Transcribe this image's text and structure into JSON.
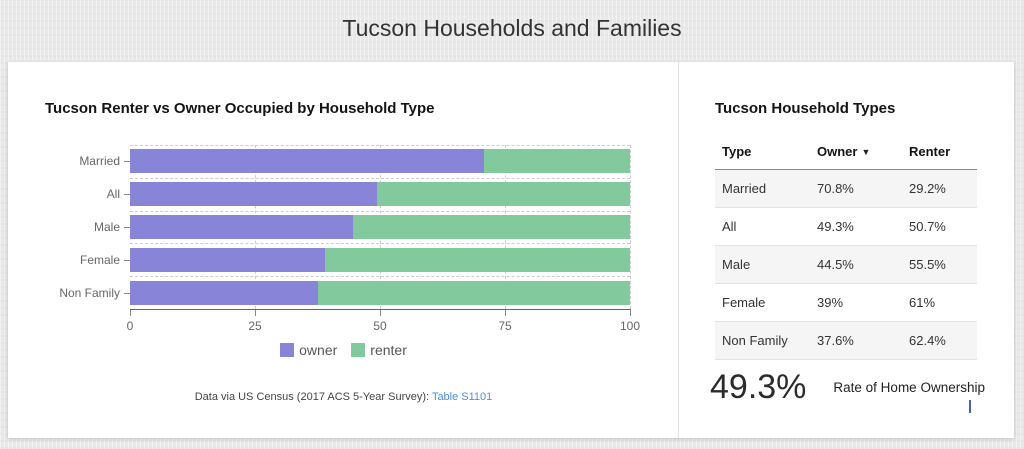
{
  "page": {
    "title": "Tucson Households and Families"
  },
  "chart": {
    "title": "Tucson Renter vs Owner Occupied by Household Type",
    "footer_text": "Data via US Census (2017 ACS 5-Year Survey): ",
    "footer_link": "Table S1101"
  },
  "chart_data": {
    "type": "bar",
    "orientation": "horizontal",
    "stacked": true,
    "title": "Tucson Renter vs Owner Occupied by Household Type",
    "categories": [
      "Married",
      "All",
      "Male",
      "Female",
      "Non Family"
    ],
    "series": [
      {
        "name": "owner",
        "color": "#8884d8",
        "values": [
          70.8,
          49.3,
          44.5,
          39,
          37.6
        ]
      },
      {
        "name": "renter",
        "color": "#82ca9d",
        "values": [
          29.2,
          50.7,
          55.5,
          61,
          62.4
        ]
      }
    ],
    "xlabel": "",
    "ylabel": "",
    "xlim": [
      0,
      100
    ],
    "x_ticks": [
      0,
      25,
      50,
      75,
      100
    ],
    "grid": true,
    "legend_position": "bottom"
  },
  "table": {
    "title": "Tucson Household Types",
    "headers": [
      "Type",
      "Owner",
      "Renter"
    ],
    "sort": {
      "column": "Owner",
      "direction": "desc"
    },
    "rows": [
      [
        "Married",
        "70.8%",
        "29.2%"
      ],
      [
        "All",
        "49.3%",
        "50.7%"
      ],
      [
        "Male",
        "44.5%",
        "55.5%"
      ],
      [
        "Female",
        "39%",
        "61%"
      ],
      [
        "Non Family",
        "37.6%",
        "62.4%"
      ]
    ]
  },
  "stat": {
    "value": "49.3%",
    "label": "Rate of Home Ownership"
  },
  "icons": {
    "sort_desc": "▼"
  },
  "colors": {
    "owner": "#8884d8",
    "renter": "#82ca9d",
    "link": "#4a90d9",
    "card_bg": "#ffffff",
    "page_bg": "#e9e9e9"
  }
}
